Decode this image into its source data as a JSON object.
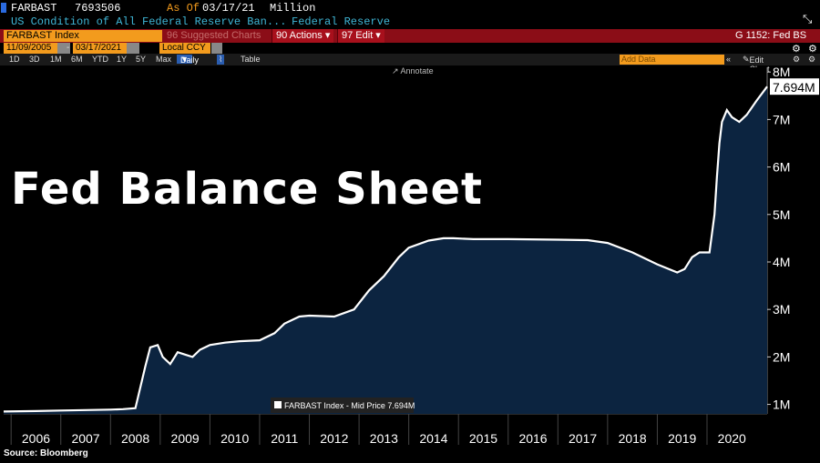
{
  "terminal": {
    "ticker": "FARBAST",
    "last_value": "7693506",
    "as_of_label": "As Of",
    "as_of_date": "03/17/21",
    "units": "Million",
    "description": "US Condition of All Federal Reserve Ban...",
    "source_name": "Federal Reserve",
    "security": "FARBAST Index",
    "suggested": "96 Suggested Charts",
    "actions": "90 Actions",
    "edit": "97 Edit",
    "chart_id": "G 1152: Fed BS",
    "start_date": "11/09/2005",
    "end_date": "03/17/2021",
    "currency": "Local CCY",
    "periods": [
      "1D",
      "3D",
      "1M",
      "6M",
      "YTD",
      "1Y",
      "5Y",
      "Max"
    ],
    "frequency": "Daily",
    "table_label": "Table",
    "annotate_label": "Annotate",
    "add_data_placeholder": "Add Data",
    "edit_chart_label": "Edit Chart"
  },
  "overlay_title": "Fed Balance Sheet",
  "source": "Source: Bloomberg",
  "colors": {
    "area": "#0c2440",
    "line": "#ffffff",
    "accent_red": "#8b0d17",
    "accent_orange": "#f39b1d"
  },
  "chart_data": {
    "type": "area",
    "title": "Fed Balance Sheet",
    "legend": "FARBAST Index - Mid Price 7.694M",
    "last_label": "7.694M",
    "last_value": 7.694,
    "xlabel": "",
    "ylabel": "",
    "ylim": [
      0.8,
      8.1
    ],
    "yticks": [
      1,
      2,
      3,
      4,
      5,
      6,
      7,
      8
    ],
    "ytick_labels": [
      "1M",
      "2M",
      "3M",
      "4M",
      "5M",
      "6M",
      "7M",
      "8M"
    ],
    "xlim": [
      2005.85,
      2021.21
    ],
    "xtick_labels": [
      "2006",
      "2007",
      "2008",
      "2009",
      "2010",
      "2011",
      "2012",
      "2013",
      "2014",
      "2015",
      "2016",
      "2017",
      "2018",
      "2019",
      "2020"
    ],
    "x": [
      2005.85,
      2006.5,
      2007.0,
      2007.5,
      2008.0,
      2008.25,
      2008.5,
      2008.7,
      2008.8,
      2008.95,
      2009.05,
      2009.2,
      2009.35,
      2009.5,
      2009.65,
      2009.8,
      2010.0,
      2010.3,
      2010.6,
      2011.0,
      2011.3,
      2011.5,
      2011.8,
      2012.0,
      2012.5,
      2012.9,
      2013.2,
      2013.5,
      2013.8,
      2014.0,
      2014.4,
      2014.7,
      2014.9,
      2015.3,
      2016.0,
      2017.0,
      2017.6,
      2018.0,
      2018.5,
      2019.0,
      2019.4,
      2019.55,
      2019.7,
      2019.85,
      2020.05,
      2020.15,
      2020.2,
      2020.25,
      2020.3,
      2020.4,
      2020.5,
      2020.65,
      2020.8,
      2021.0,
      2021.21
    ],
    "values": [
      0.85,
      0.86,
      0.87,
      0.88,
      0.89,
      0.9,
      0.92,
      1.8,
      2.2,
      2.25,
      2.0,
      1.85,
      2.1,
      2.05,
      2.0,
      2.15,
      2.25,
      2.3,
      2.33,
      2.35,
      2.5,
      2.7,
      2.85,
      2.87,
      2.85,
      3.0,
      3.4,
      3.7,
      4.1,
      4.3,
      4.45,
      4.5,
      4.5,
      4.48,
      4.48,
      4.47,
      4.46,
      4.4,
      4.2,
      3.95,
      3.78,
      3.85,
      4.1,
      4.2,
      4.2,
      5.0,
      5.8,
      6.5,
      6.95,
      7.2,
      7.05,
      6.95,
      7.1,
      7.4,
      7.694
    ]
  }
}
